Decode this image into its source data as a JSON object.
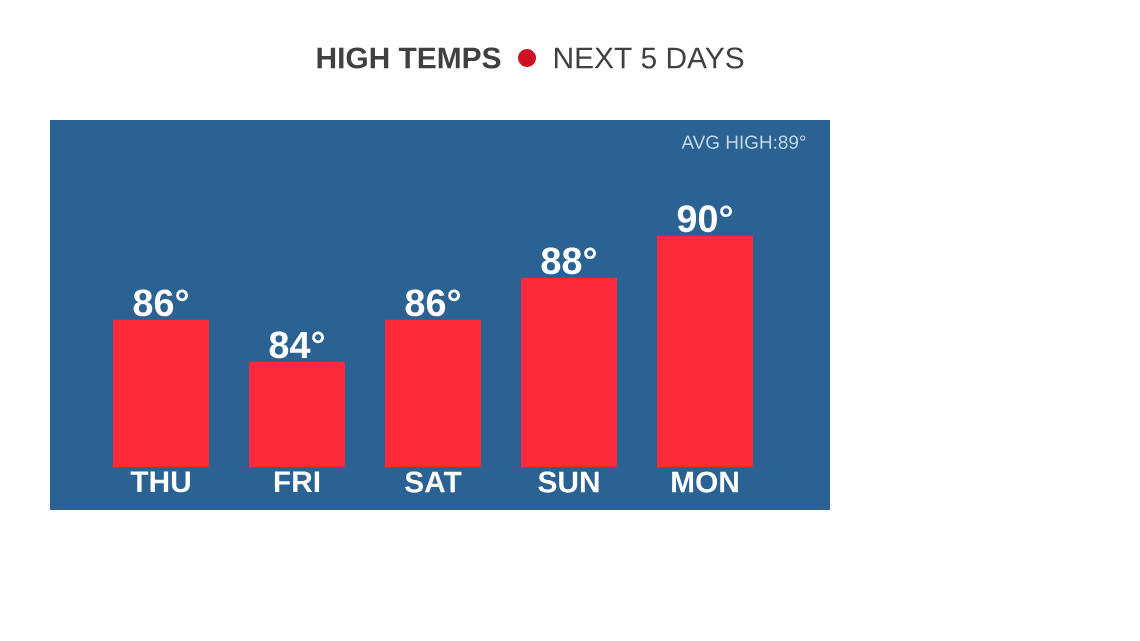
{
  "chart_data": {
    "type": "bar",
    "title": "HIGH TEMPS",
    "subtitle": "NEXT 5 DAYS",
    "categories": [
      "THU",
      "FRI",
      "SAT",
      "SUN",
      "MON"
    ],
    "values": [
      86,
      84,
      86,
      88,
      90
    ],
    "value_labels": [
      "86°",
      "84°",
      "86°",
      "88°",
      "90°"
    ],
    "color": "#fc2a3a",
    "ylim": [
      79,
      95.5
    ],
    "tick_labels": "x",
    "annotations": [
      "AVG HIGH:89°"
    ]
  }
}
